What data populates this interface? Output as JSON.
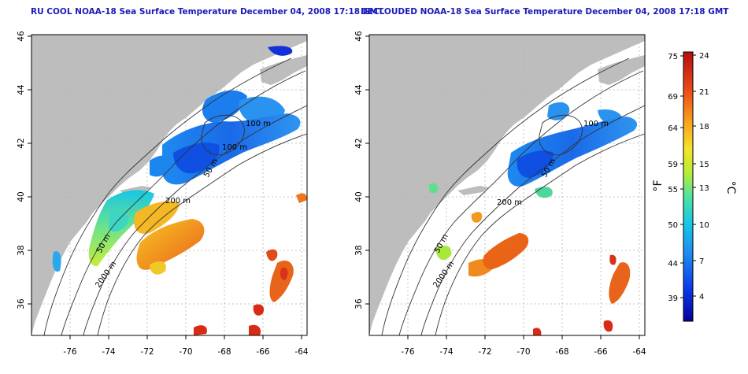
{
  "panels": [
    {
      "title": "RU COOL NOAA-18 Sea Surface Temperature December 04, 2008 17:18 GMT",
      "contour_labels": [
        "100 m",
        "100 m",
        "50 m",
        "200 m",
        "50 m",
        "2000 m"
      ]
    },
    {
      "title": "DECLOUDED NOAA-18 Sea Surface Temperature December 04, 2008 17:18 GMT",
      "contour_labels": [
        "100 m",
        "50 m",
        "200 m",
        "50 m",
        "2000 m"
      ]
    }
  ],
  "map": {
    "lon_ticks": [
      "-76",
      "-74",
      "-72",
      "-70",
      "-68",
      "-66",
      "-64"
    ],
    "lat_ticks": [
      "36",
      "38",
      "40",
      "42",
      "44",
      "46"
    ],
    "colors": {
      "land": "#bdbdbd",
      "ocean": "#ffffff",
      "grid": "#b0b0b0",
      "contour": "#333333"
    }
  },
  "colorbar": {
    "f_label": "°F",
    "c_label": "°C",
    "f_ticks": [
      "75",
      "69",
      "64",
      "59",
      "55",
      "50",
      "44",
      "39"
    ],
    "c_ticks": [
      "24",
      "21",
      "18",
      "15",
      "13",
      "10",
      "7",
      "4"
    ],
    "gradient": [
      "#06019b",
      "#0a3ae8",
      "#1e8af0",
      "#16c6e6",
      "#4ee2a4",
      "#b6ec36",
      "#f5e32a",
      "#f8a21f",
      "#ea4a17",
      "#b50f0f"
    ]
  }
}
